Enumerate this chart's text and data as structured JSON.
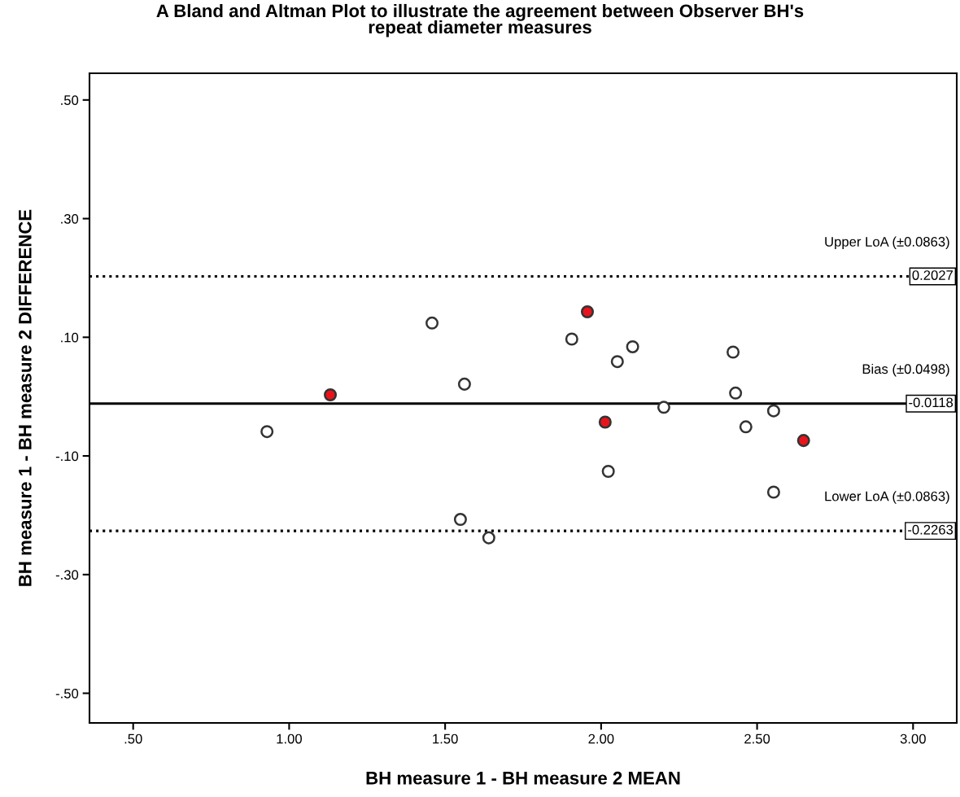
{
  "chart_data": {
    "type": "scatter",
    "title": "A Bland and Altman Plot to illustrate the agreement between Observer BH's\nrepeat diameter measures",
    "xlabel": "BH measure 1 - BH measure 2 MEAN",
    "ylabel": "BH measure 1 - BH measure 2 DIFFERENCE",
    "series": [
      {
        "color": "#ffffff",
        "x": [
          0.929,
          1.458,
          1.562,
          1.549,
          1.64,
          1.906,
          2.052,
          2.101,
          2.023,
          2.201,
          2.423,
          2.431,
          2.464,
          2.553,
          2.553
        ],
        "values": [
          -0.059,
          0.124,
          0.021,
          -0.207,
          -0.238,
          0.097,
          0.059,
          0.084,
          -0.126,
          -0.018,
          0.075,
          0.006,
          -0.051,
          -0.024,
          -0.161
        ]
      },
      {
        "color": "#e8141c",
        "x": [
          1.132,
          1.956,
          2.013,
          2.649
        ],
        "values": [
          0.003,
          0.143,
          -0.043,
          -0.074
        ]
      }
    ],
    "marker": "circle",
    "xlim": [
      0.36,
      3.14
    ],
    "xticks": [
      {
        "value": 0.5,
        "label": ".50"
      },
      {
        "value": 1.0,
        "label": "1.00"
      },
      {
        "value": 1.5,
        "label": "1.50"
      },
      {
        "value": 2.0,
        "label": "2.00"
      },
      {
        "value": 2.5,
        "label": "2.50"
      },
      {
        "value": 3.0,
        "label": "3.00"
      }
    ],
    "ylim": [
      -0.55,
      0.545
    ],
    "yticks": [
      {
        "value": 0.5,
        "label": ".50"
      },
      {
        "value": 0.3,
        "label": ".30"
      },
      {
        "value": 0.1,
        "label": ".10"
      },
      {
        "value": -0.1,
        "label": "-.10"
      },
      {
        "value": -0.3,
        "label": "-.30"
      },
      {
        "value": -0.5,
        "label": "-.50"
      }
    ],
    "ref_lines": [
      {
        "axis": "y",
        "value": 0.2027,
        "label": "Upper LoA (±0.0863)",
        "color": "#000000",
        "line_style": "dotted"
      },
      {
        "axis": "y",
        "value": -0.0118,
        "label": "Bias (±0.0498)",
        "color": "#000000",
        "line_style": "solid"
      },
      {
        "axis": "y",
        "value": -0.2263,
        "label": "Lower LoA (±0.0863)",
        "color": "#000000",
        "line_style": "dotted"
      }
    ],
    "annotations": [
      {
        "text": "0.2027",
        "y": 0.2027
      },
      {
        "text": "-0.0118",
        "y": -0.0118
      },
      {
        "text": "-0.2263",
        "y": -0.2263
      }
    ],
    "grid": false,
    "legend": false
  }
}
